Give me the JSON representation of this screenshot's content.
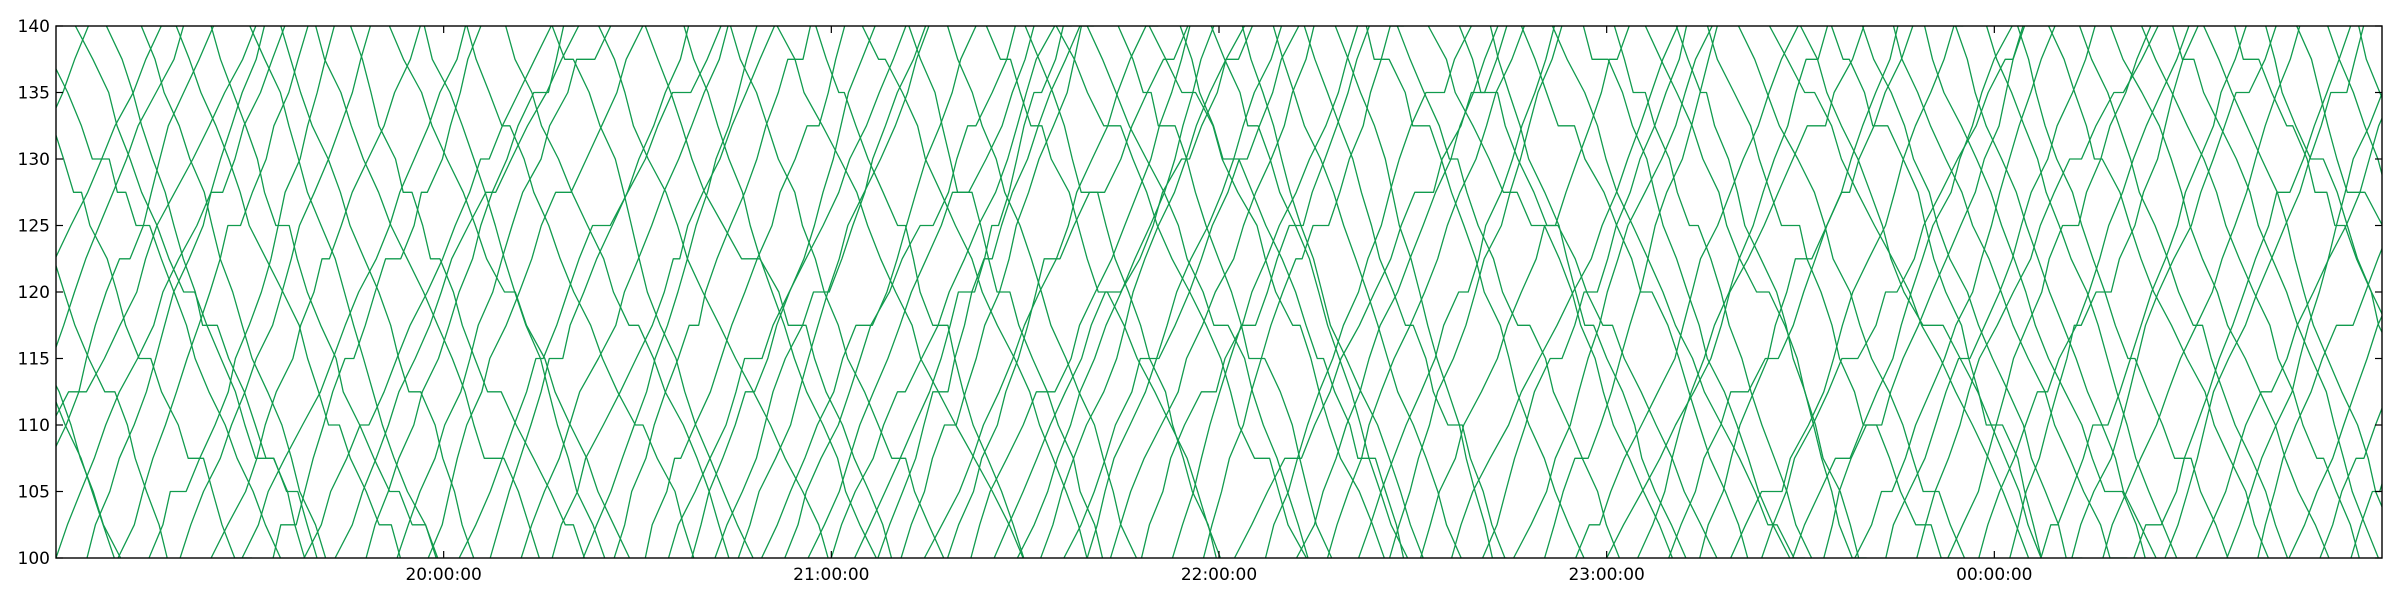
{
  "chart_data": {
    "type": "line",
    "title": "",
    "xlabel": "",
    "ylabel": "",
    "x_unit": "hours since 19:00:00 (x axis spans 19:00:00 to 01:00:00 next day)",
    "xlim": [
      0,
      6
    ],
    "ylim": [
      100,
      140
    ],
    "y_ticks": [
      100,
      105,
      110,
      115,
      120,
      125,
      130,
      135,
      140
    ],
    "x_ticks": [
      {
        "value": 1,
        "label": "20:00:00"
      },
      {
        "value": 2,
        "label": "21:00:00"
      },
      {
        "value": 3,
        "label": "22:00:00"
      },
      {
        "value": 4,
        "label": "23:00:00"
      },
      {
        "value": 5,
        "label": "00:00:00"
      }
    ],
    "grid": false,
    "legend": "none",
    "line_color": "#119b4e",
    "direction_groups": [
      {
        "name": "",
        "direction": "descending",
        "km_start": 140,
        "km_end": 100,
        "trip_hours": 0.5,
        "start_hours": [
          -0.4,
          -0.3,
          -0.22,
          -0.14,
          -0.05,
          0.05,
          0.13,
          0.22,
          0.31,
          0.4,
          0.5,
          0.58,
          0.67,
          0.76,
          0.86,
          0.95,
          1.06,
          1.16,
          1.28,
          1.4,
          1.52,
          1.62,
          1.74,
          1.86,
          1.96,
          2.08,
          2.2,
          2.3,
          2.4,
          2.5,
          2.58,
          2.66,
          2.74,
          2.82,
          2.9,
          2.98,
          3.06,
          3.14,
          3.22,
          3.3,
          3.38,
          3.46,
          3.54,
          3.62,
          3.7,
          3.78,
          3.86,
          3.94,
          4.02,
          4.1,
          4.18,
          4.26,
          4.34,
          4.42,
          4.5,
          4.58,
          4.66,
          4.74,
          4.82,
          4.9,
          4.98,
          5.06,
          5.14,
          5.22,
          5.3,
          5.38,
          5.46,
          5.54,
          5.62,
          5.7,
          5.78,
          5.86,
          5.94
        ]
      },
      {
        "name": "",
        "direction": "ascending",
        "km_start": 100,
        "km_end": 140,
        "trip_hours": 0.5,
        "start_hours": [
          -0.4,
          -0.32,
          -0.24,
          -0.16,
          -0.08,
          0.0,
          0.08,
          0.16,
          0.24,
          0.32,
          0.4,
          0.48,
          0.56,
          0.64,
          0.72,
          0.8,
          0.88,
          0.96,
          1.04,
          1.12,
          1.2,
          1.28,
          1.36,
          1.44,
          1.52,
          1.58,
          1.64,
          1.7,
          1.76,
          1.82,
          1.88,
          1.94,
          2.0,
          2.06,
          2.12,
          2.18,
          2.24,
          2.3,
          2.36,
          2.42,
          2.48,
          2.54,
          2.6,
          2.66,
          2.72,
          2.8,
          2.88,
          2.96,
          3.04,
          3.12,
          3.2,
          3.28,
          3.36,
          3.44,
          3.52,
          3.6,
          3.68,
          3.76,
          3.84,
          3.92,
          4.0,
          4.08,
          4.16,
          4.24,
          4.32,
          4.4,
          4.48,
          4.56,
          4.64,
          4.72,
          4.8,
          4.88,
          4.96,
          5.04,
          5.12,
          5.2,
          5.28,
          5.36,
          5.44,
          5.52,
          5.6,
          5.68,
          5.76,
          5.84,
          5.92
        ]
      }
    ]
  }
}
